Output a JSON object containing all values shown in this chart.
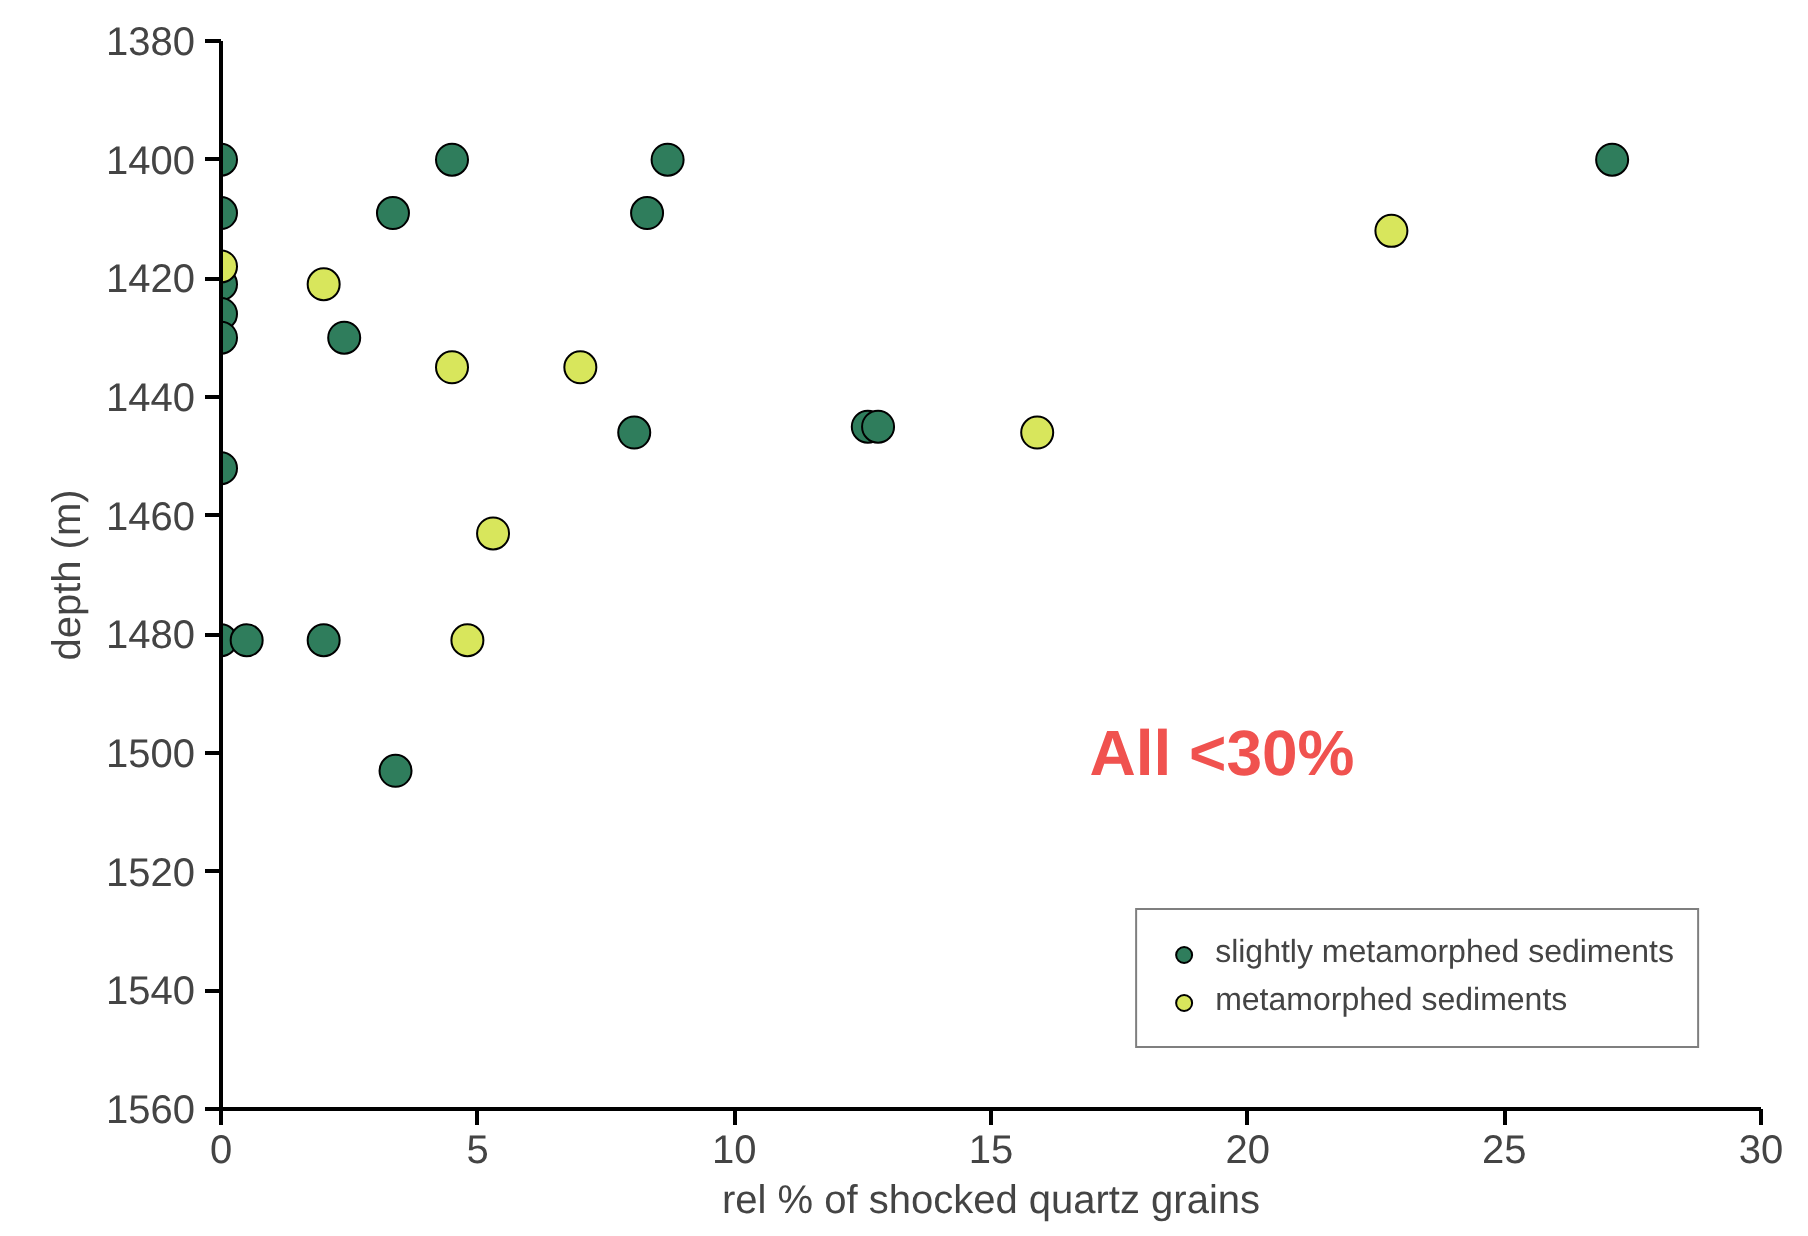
{
  "chart_data": {
    "type": "scatter",
    "xlabel": "rel % of shocked quartz grains",
    "ylabel": "depth (m)",
    "xlim": [
      0,
      30
    ],
    "xticks": [
      0,
      5,
      10,
      15,
      20,
      25,
      30
    ],
    "ylim": [
      1560,
      1380
    ],
    "yticks": [
      1380,
      1400,
      1420,
      1440,
      1460,
      1480,
      1500,
      1520,
      1540,
      1560
    ],
    "grid": false,
    "legend": "bottom right",
    "marker": "circle",
    "annotations": [
      "All <30%"
    ],
    "series": [
      {
        "name": "slightly metamorphed sediments",
        "color": "#2f7d5c",
        "x": [
          0,
          4.5,
          8.7,
          27.1,
          0,
          3.35,
          8.3,
          0,
          0,
          0,
          2.4,
          8.05,
          12.6,
          12.8,
          0,
          0,
          0.5,
          2.0,
          3.4
        ],
        "values": [
          1400,
          1400,
          1400,
          1400,
          1409,
          1409,
          1409,
          1421,
          1426,
          1430,
          1430,
          1446,
          1445,
          1445,
          1452,
          1481,
          1481,
          1481,
          1503
        ]
      },
      {
        "name": "metamorphed sediments",
        "color": "#d8e65c",
        "x": [
          0,
          2,
          4.5,
          7,
          5.3,
          4.8,
          15.9,
          22.8
        ],
        "values": [
          1418,
          1421,
          1435,
          1435,
          1463,
          1481,
          1446,
          1412
        ]
      }
    ]
  }
}
